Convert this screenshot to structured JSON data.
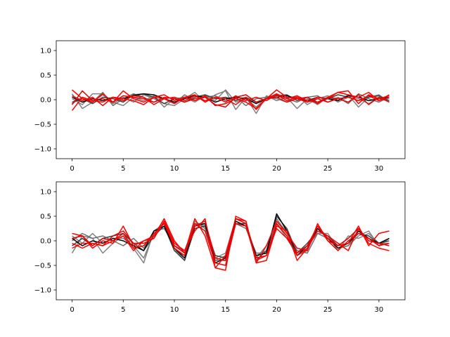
{
  "chart_data": [
    {
      "type": "line",
      "title": "",
      "xlabel": "",
      "ylabel": "",
      "xlim": [
        -1.55,
        32.55
      ],
      "ylim": [
        -1.2,
        1.2
      ],
      "xticks": [
        0,
        5,
        10,
        15,
        20,
        25,
        30
      ],
      "yticks": [
        -1.0,
        -0.5,
        0.0,
        0.5,
        1.0
      ],
      "xtick_labels": [
        "0",
        "5",
        "10",
        "15",
        "20",
        "25",
        "30"
      ],
      "ytick_labels": [
        "−1.0",
        "−0.5",
        "0.0",
        "0.5",
        "1.0"
      ],
      "grid": false,
      "x": [
        0,
        1,
        2,
        3,
        4,
        5,
        6,
        7,
        8,
        9,
        10,
        11,
        12,
        13,
        14,
        15,
        16,
        17,
        18,
        19,
        20,
        21,
        22,
        23,
        24,
        25,
        26,
        27,
        28,
        29,
        30,
        31
      ],
      "series": [
        {
          "color": "#808080",
          "values": [
            0.12,
            -0.18,
            -0.05,
            0.1,
            -0.08,
            0.05,
            -0.05,
            0.1,
            0.02,
            -0.08,
            -0.12,
            0.02,
            0.15,
            -0.05,
            0.1,
            0.18,
            -0.2,
            0.05,
            -0.28,
            0.08,
            -0.02,
            0.05,
            -0.18,
            0.02,
            -0.1,
            0.05,
            -0.02,
            0.1,
            -0.15,
            0.05,
            0.1,
            -0.05
          ]
        },
        {
          "color": "#808080",
          "values": [
            0.02,
            -0.1,
            0.12,
            0.12,
            -0.05,
            -0.12,
            0.05,
            -0.02,
            0.08,
            -0.15,
            0.02,
            0.05,
            -0.05,
            0.08,
            -0.02,
            0.2,
            -0.05,
            0.02,
            -0.15,
            0.05,
            0.02,
            -0.05,
            0.08,
            -0.1,
            0.02,
            0.08,
            -0.05,
            0.05,
            0.02,
            -0.08,
            0.05,
            0.02
          ]
        },
        {
          "color": "#707070",
          "values": [
            -0.08,
            0.05,
            -0.05,
            0.15,
            -0.12,
            0.02,
            0.12,
            0.05,
            -0.05,
            0.02,
            -0.08,
            0.1,
            -0.02,
            0.05,
            0.08,
            -0.02,
            0.05,
            -0.12,
            0.02,
            0.05,
            0.1,
            0.02,
            -0.05,
            0.05,
            0.08,
            -0.05,
            0.05,
            -0.08,
            0.12,
            0.02,
            -0.05,
            0.05
          ]
        },
        {
          "color": "#404040",
          "values": [
            -0.05,
            0.02,
            -0.08,
            0.05,
            0.02,
            -0.05,
            0.1,
            0.12,
            0.05,
            -0.08,
            0.02,
            -0.05,
            0.05,
            0.1,
            0.02,
            0.05,
            -0.02,
            0.05,
            -0.05,
            0.02,
            0.08,
            0.1,
            -0.02,
            0.05,
            -0.05,
            0.02,
            0.1,
            0.05,
            -0.02,
            0.05,
            0.08,
            -0.02
          ]
        },
        {
          "color": "#000000",
          "values": [
            0.05,
            -0.05,
            0.02,
            -0.02,
            0.05,
            0.02,
            0.08,
            0.12,
            0.1,
            0.02,
            -0.05,
            0.02,
            0.08,
            0.05,
            -0.05,
            0.02,
            0.05,
            0.02,
            -0.08,
            0.02,
            0.05,
            0.08,
            0.02,
            -0.02,
            0.05,
            0.02,
            -0.02,
            0.08,
            0.05,
            -0.02,
            0.02,
            0.05
          ]
        },
        {
          "color": "#ff0000",
          "values": [
            0.2,
            0.02,
            -0.05,
            0.12,
            -0.05,
            0.18,
            0.02,
            -0.05,
            0.05,
            0.1,
            -0.02,
            0.05,
            0.1,
            -0.05,
            0.05,
            0.02,
            -0.1,
            0.05,
            -0.2,
            0.02,
            0.2,
            0.05,
            0.02,
            -0.05,
            0.05,
            0.02,
            0.15,
            0.1,
            0.05,
            0.15,
            -0.02,
            0.1
          ]
        },
        {
          "color": "#ff0000",
          "values": [
            -0.22,
            0.05,
            -0.02,
            -0.05,
            0.05,
            0.02,
            -0.02,
            -0.1,
            0.05,
            0.02,
            -0.08,
            0.05,
            -0.02,
            0.08,
            -0.12,
            -0.08,
            0.02,
            -0.05,
            -0.18,
            0.02,
            0.12,
            0.02,
            0.08,
            -0.02,
            -0.05,
            0.05,
            0.15,
            0.18,
            -0.08,
            0.1,
            0.02,
            0.08
          ]
        },
        {
          "color": "#e00000",
          "values": [
            -0.1,
            0.18,
            -0.02,
            0.02,
            -0.05,
            0.08,
            0.05,
            0.02,
            -0.05,
            0.05,
            0.02,
            -0.05,
            0.02,
            0.05,
            -0.1,
            -0.15,
            0.05,
            0.1,
            -0.05,
            0.02,
            0.05,
            -0.05,
            0.02,
            0.05,
            -0.08,
            0.05,
            0.02,
            -0.05,
            0.1,
            -0.1,
            0.05,
            -0.05
          ]
        },
        {
          "color": "#ee0000",
          "values": [
            0.08,
            -0.02,
            0.05,
            -0.12,
            0.05,
            -0.02,
            0.08,
            0.05,
            -0.1,
            0.02,
            0.05,
            -0.02,
            0.08,
            -0.02,
            0.05,
            -0.05,
            0.08,
            -0.02,
            0.05,
            -0.02,
            0.1,
            -0.02,
            0.05,
            -0.05,
            0.02,
            -0.05,
            0.02,
            0.05,
            -0.02,
            0.08,
            -0.02,
            0.05
          ]
        }
      ]
    },
    {
      "type": "line",
      "title": "",
      "xlabel": "",
      "ylabel": "",
      "xlim": [
        -1.55,
        32.55
      ],
      "ylim": [
        -1.2,
        1.2
      ],
      "xticks": [
        0,
        5,
        10,
        15,
        20,
        25,
        30
      ],
      "yticks": [
        -1.0,
        -0.5,
        0.0,
        0.5,
        1.0
      ],
      "xtick_labels": [
        "0",
        "5",
        "10",
        "15",
        "20",
        "25",
        "30"
      ],
      "ytick_labels": [
        "−1.0",
        "−0.5",
        "0.0",
        "0.5",
        "1.0"
      ],
      "grid": false,
      "x": [
        0,
        1,
        2,
        3,
        4,
        5,
        6,
        7,
        8,
        9,
        10,
        11,
        12,
        13,
        14,
        15,
        16,
        17,
        18,
        19,
        20,
        21,
        22,
        23,
        24,
        25,
        26,
        27,
        28,
        29,
        30,
        31
      ],
      "series": [
        {
          "color": "#808080",
          "values": [
            -0.25,
            0.1,
            0.05,
            -0.25,
            -0.05,
            0.1,
            -0.15,
            -0.45,
            0.2,
            0.35,
            -0.15,
            -0.4,
            0.35,
            0.3,
            -0.4,
            -0.3,
            0.4,
            0.3,
            -0.35,
            -0.1,
            0.35,
            0.05,
            -0.3,
            -0.2,
            0.25,
            0.1,
            -0.2,
            0.1,
            0.05,
            0.15,
            -0.05,
            -0.05
          ]
        },
        {
          "color": "#808080",
          "values": [
            0.1,
            -0.05,
            0.15,
            -0.05,
            0.05,
            0.05,
            -0.1,
            -0.35,
            0.15,
            0.3,
            -0.2,
            -0.3,
            0.4,
            0.25,
            -0.35,
            -0.25,
            0.45,
            0.35,
            -0.3,
            -0.2,
            0.4,
            0.2,
            -0.25,
            -0.1,
            0.15,
            0.15,
            -0.15,
            -0.1,
            0.1,
            0.2,
            -0.1,
            0.05
          ]
        },
        {
          "color": "#707070",
          "values": [
            0.0,
            0.15,
            0.05,
            0.1,
            0.0,
            -0.1,
            0.05,
            -0.15,
            0.2,
            0.25,
            -0.1,
            -0.2,
            0.35,
            0.35,
            -0.4,
            -0.4,
            0.35,
            0.25,
            -0.25,
            -0.25,
            0.45,
            0.15,
            -0.2,
            -0.25,
            0.15,
            0.05,
            -0.15,
            -0.1,
            0.2,
            0.05,
            -0.1,
            0.05
          ]
        },
        {
          "color": "#404040",
          "values": [
            -0.1,
            0.05,
            -0.1,
            0.05,
            0.1,
            0.15,
            -0.05,
            -0.2,
            0.1,
            0.3,
            -0.2,
            -0.4,
            0.25,
            0.3,
            -0.3,
            -0.35,
            0.35,
            0.35,
            -0.4,
            -0.2,
            0.5,
            0.25,
            -0.25,
            -0.05,
            0.2,
            0.1,
            -0.1,
            -0.05,
            0.15,
            0.1,
            -0.05,
            0.0
          ]
        },
        {
          "color": "#000000",
          "values": [
            0.05,
            -0.1,
            0.0,
            -0.05,
            0.05,
            0.0,
            -0.1,
            -0.2,
            0.2,
            0.3,
            -0.15,
            -0.35,
            0.3,
            0.35,
            -0.45,
            -0.35,
            0.4,
            0.3,
            -0.3,
            -0.25,
            0.55,
            0.2,
            -0.3,
            -0.1,
            0.25,
            0.05,
            -0.15,
            -0.05,
            0.2,
            0.05,
            -0.05,
            0.05
          ]
        },
        {
          "color": "#ff0000",
          "values": [
            0.15,
            0.1,
            -0.15,
            0.0,
            -0.05,
            0.3,
            -0.1,
            0.0,
            0.1,
            0.45,
            0.0,
            -0.25,
            0.45,
            0.1,
            -0.55,
            -0.3,
            0.45,
            0.4,
            -0.45,
            -0.1,
            0.4,
            0.15,
            -0.15,
            -0.2,
            0.35,
            0.0,
            -0.1,
            -0.05,
            0.3,
            -0.1,
            0.15,
            0.2
          ]
        },
        {
          "color": "#ff0000",
          "values": [
            -0.05,
            -0.15,
            -0.05,
            -0.1,
            0.0,
            0.1,
            -0.2,
            0.0,
            0.05,
            0.4,
            -0.05,
            -0.2,
            0.2,
            0.45,
            -0.55,
            -0.6,
            0.5,
            0.4,
            -0.45,
            -0.4,
            0.3,
            0.2,
            -0.4,
            -0.15,
            0.2,
            0.1,
            -0.05,
            -0.2,
            0.25,
            -0.05,
            -0.15,
            -0.2
          ]
        },
        {
          "color": "#e00000",
          "values": [
            0.05,
            0.1,
            -0.1,
            0.05,
            0.0,
            0.15,
            -0.15,
            -0.1,
            0.15,
            0.35,
            -0.1,
            -0.25,
            0.3,
            0.4,
            -0.35,
            -0.4,
            0.45,
            0.35,
            -0.35,
            -0.3,
            0.35,
            0.1,
            -0.3,
            -0.15,
            0.3,
            0.05,
            -0.1,
            0.05,
            0.25,
            0.0,
            -0.05,
            -0.1
          ]
        },
        {
          "color": "#ee0000",
          "values": [
            -0.15,
            -0.05,
            -0.05,
            -0.1,
            0.1,
            0.2,
            -0.05,
            -0.05,
            0.05,
            0.4,
            -0.15,
            -0.3,
            0.35,
            0.2,
            -0.45,
            -0.5,
            0.35,
            0.3,
            -0.4,
            -0.3,
            0.25,
            0.05,
            -0.25,
            -0.1,
            0.3,
            0.0,
            -0.2,
            0.0,
            0.15,
            0.05,
            -0.1,
            -0.05
          ]
        }
      ]
    }
  ]
}
